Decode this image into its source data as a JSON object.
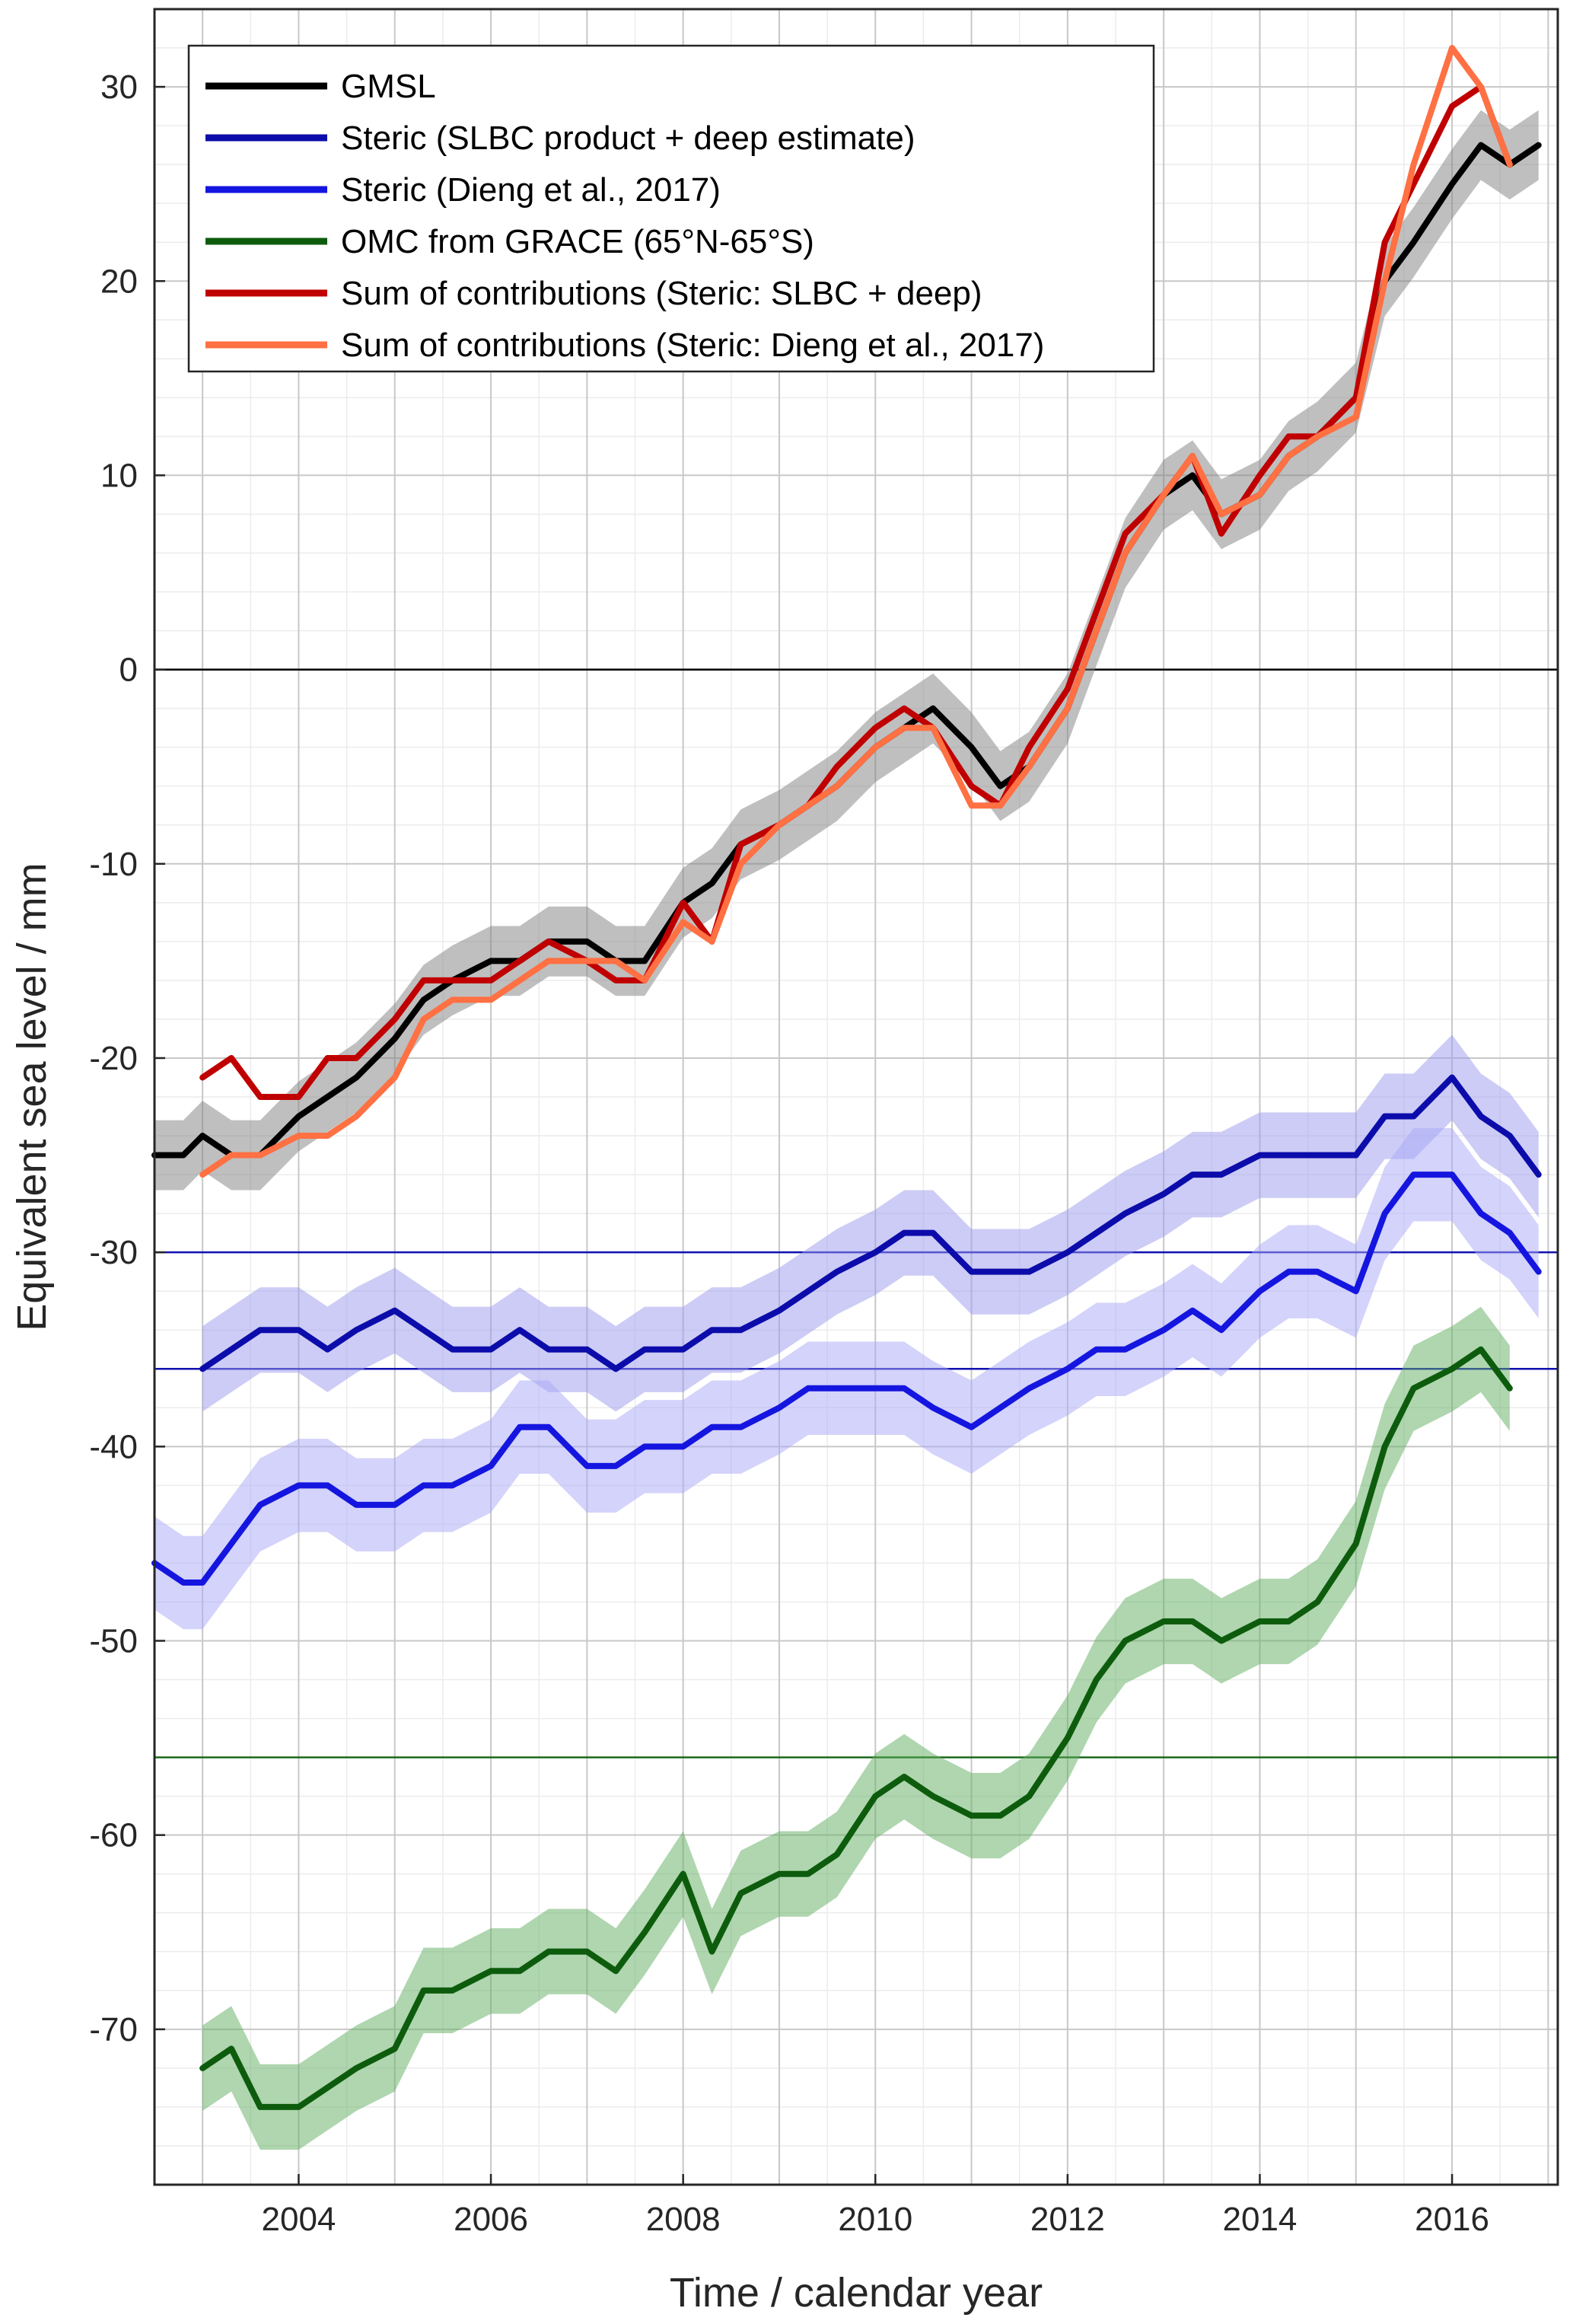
{
  "chart_data": {
    "type": "line",
    "title": "",
    "xlabel": "Time / calendar year",
    "ylabel": "Equivalent sea level / mm",
    "xlim": [
      2002.5,
      2017.1
    ],
    "ylim": [
      -78,
      34
    ],
    "xticks": [
      2004,
      2006,
      2008,
      2010,
      2012,
      2014,
      2016
    ],
    "yticks": [
      30,
      20,
      10,
      0,
      -10,
      -20,
      -30,
      -40,
      -50,
      -60,
      -70
    ],
    "grid": true,
    "legend_position": "top-left",
    "reference_lines": [
      {
        "y": 0,
        "color": "#000000"
      },
      {
        "y": -30,
        "color": "#1010b0"
      },
      {
        "y": -36,
        "color": "#1010b0"
      },
      {
        "y": -56,
        "color": "#1a6a1a"
      }
    ],
    "series": [
      {
        "name": "GMSL",
        "color": "#000000",
        "band_color": "#808080",
        "band": 1.8,
        "x": [
          2002.5,
          2002.8,
          2003.0,
          2003.3,
          2003.6,
          2004.0,
          2004.3,
          2004.6,
          2005.0,
          2005.3,
          2005.6,
          2006.0,
          2006.3,
          2006.6,
          2007.0,
          2007.3,
          2007.6,
          2008.0,
          2008.3,
          2008.6,
          2009.0,
          2009.3,
          2009.6,
          2010.0,
          2010.3,
          2010.6,
          2011.0,
          2011.3,
          2011.6,
          2012.0,
          2012.3,
          2012.6,
          2013.0,
          2013.3,
          2013.6,
          2014.0,
          2014.3,
          2014.6,
          2015.0,
          2015.3,
          2015.6,
          2016.0,
          2016.3,
          2016.6,
          2016.9
        ],
        "values": [
          -25,
          -25,
          -24,
          -25,
          -25,
          -23,
          -22,
          -21,
          -19,
          -17,
          -16,
          -15,
          -15,
          -14,
          -14,
          -15,
          -15,
          -12,
          -11,
          -9,
          -8,
          -7,
          -6,
          -4,
          -3,
          -2,
          -4,
          -6,
          -5,
          -2,
          2,
          6,
          9,
          10,
          8,
          9,
          11,
          12,
          14,
          20,
          22,
          25,
          27,
          26,
          27
        ]
      },
      {
        "name": "Steric (SLBC product + deep estimate)",
        "color": "#0c0cab",
        "band_color": "#9999ee",
        "band": 2.2,
        "x": [
          2003.0,
          2003.3,
          2003.6,
          2004.0,
          2004.3,
          2004.6,
          2005.0,
          2005.3,
          2005.6,
          2006.0,
          2006.3,
          2006.6,
          2007.0,
          2007.3,
          2007.6,
          2008.0,
          2008.3,
          2008.6,
          2009.0,
          2009.3,
          2009.6,
          2010.0,
          2010.3,
          2010.6,
          2011.0,
          2011.3,
          2011.6,
          2012.0,
          2012.3,
          2012.6,
          2013.0,
          2013.3,
          2013.6,
          2014.0,
          2014.3,
          2014.6,
          2015.0,
          2015.3,
          2015.6,
          2016.0,
          2016.3,
          2016.6,
          2016.9
        ],
        "values": [
          -36,
          -35,
          -34,
          -34,
          -35,
          -34,
          -33,
          -34,
          -35,
          -35,
          -34,
          -35,
          -35,
          -36,
          -35,
          -35,
          -34,
          -34,
          -33,
          -32,
          -31,
          -30,
          -29,
          -29,
          -31,
          -31,
          -31,
          -30,
          -29,
          -28,
          -27,
          -26,
          -26,
          -25,
          -25,
          -25,
          -25,
          -23,
          -23,
          -21,
          -23,
          -24,
          -26
        ]
      },
      {
        "name": "Steric (Dieng et al., 2017)",
        "color": "#1515e0",
        "band_color": "#a8a8f8",
        "band": 2.4,
        "x": [
          2002.5,
          2002.8,
          2003.0,
          2003.3,
          2003.6,
          2004.0,
          2004.3,
          2004.6,
          2005.0,
          2005.3,
          2005.6,
          2006.0,
          2006.3,
          2006.6,
          2007.0,
          2007.3,
          2007.6,
          2008.0,
          2008.3,
          2008.6,
          2009.0,
          2009.3,
          2009.6,
          2010.0,
          2010.3,
          2010.6,
          2011.0,
          2011.3,
          2011.6,
          2012.0,
          2012.3,
          2012.6,
          2013.0,
          2013.3,
          2013.6,
          2014.0,
          2014.3,
          2014.6,
          2015.0,
          2015.3,
          2015.6,
          2016.0,
          2016.3,
          2016.6,
          2016.9
        ],
        "values": [
          -46,
          -47,
          -47,
          -45,
          -43,
          -42,
          -42,
          -43,
          -43,
          -42,
          -42,
          -41,
          -39,
          -39,
          -41,
          -41,
          -40,
          -40,
          -39,
          -39,
          -38,
          -37,
          -37,
          -37,
          -37,
          -38,
          -39,
          -38,
          -37,
          -36,
          -35,
          -35,
          -34,
          -33,
          -34,
          -32,
          -31,
          -31,
          -32,
          -28,
          -26,
          -26,
          -28,
          -29,
          -31
        ]
      },
      {
        "name": "OMC from GRACE (65°N-65°S)",
        "color": "#0d5c0d",
        "band_color": "#5fae5f",
        "band": 2.2,
        "x": [
          2003.0,
          2003.3,
          2003.6,
          2004.0,
          2004.3,
          2004.6,
          2005.0,
          2005.3,
          2005.6,
          2006.0,
          2006.3,
          2006.6,
          2007.0,
          2007.3,
          2007.6,
          2008.0,
          2008.3,
          2008.6,
          2009.0,
          2009.3,
          2009.6,
          2010.0,
          2010.3,
          2010.6,
          2011.0,
          2011.3,
          2011.6,
          2012.0,
          2012.3,
          2012.6,
          2013.0,
          2013.3,
          2013.6,
          2014.0,
          2014.3,
          2014.6,
          2015.0,
          2015.3,
          2015.6,
          2016.0,
          2016.3,
          2016.6
        ],
        "values": [
          -72,
          -71,
          -74,
          -74,
          -73,
          -72,
          -71,
          -68,
          -68,
          -67,
          -67,
          -66,
          -66,
          -67,
          -65,
          -62,
          -66,
          -63,
          -62,
          -62,
          -61,
          -58,
          -57,
          -58,
          -59,
          -59,
          -58,
          -55,
          -52,
          -50,
          -49,
          -49,
          -50,
          -49,
          -49,
          -48,
          -45,
          -40,
          -37,
          -36,
          -35,
          -37
        ]
      },
      {
        "name": "Sum of contributions (Steric: SLBC + deep)",
        "color": "#c00000",
        "band_color": "",
        "band": 0,
        "x": [
          2003.0,
          2003.3,
          2003.6,
          2004.0,
          2004.3,
          2004.6,
          2005.0,
          2005.3,
          2005.6,
          2006.0,
          2006.3,
          2006.6,
          2007.0,
          2007.3,
          2007.6,
          2008.0,
          2008.3,
          2008.6,
          2009.0,
          2009.3,
          2009.6,
          2010.0,
          2010.3,
          2010.6,
          2011.0,
          2011.3,
          2011.6,
          2012.0,
          2012.3,
          2012.6,
          2013.0,
          2013.3,
          2013.6,
          2014.0,
          2014.3,
          2014.6,
          2015.0,
          2015.3,
          2015.6,
          2016.0,
          2016.3,
          2016.6
        ],
        "values": [
          -21,
          -20,
          -22,
          -22,
          -20,
          -20,
          -18,
          -16,
          -16,
          -16,
          -15,
          -14,
          -15,
          -16,
          -16,
          -12,
          -14,
          -9,
          -8,
          -7,
          -5,
          -3,
          -2,
          -3,
          -6,
          -7,
          -4,
          -1,
          3,
          7,
          9,
          11,
          7,
          10,
          12,
          12,
          14,
          22,
          25,
          29,
          30,
          26
        ]
      },
      {
        "name": "Sum of contributions (Steric: Dieng et al., 2017)",
        "color": "#ff7043",
        "band_color": "",
        "band": 0,
        "x": [
          2003.0,
          2003.3,
          2003.6,
          2004.0,
          2004.3,
          2004.6,
          2005.0,
          2005.3,
          2005.6,
          2006.0,
          2006.3,
          2006.6,
          2007.0,
          2007.3,
          2007.6,
          2008.0,
          2008.3,
          2008.6,
          2009.0,
          2009.3,
          2009.6,
          2010.0,
          2010.3,
          2010.6,
          2011.0,
          2011.3,
          2011.6,
          2012.0,
          2012.3,
          2012.6,
          2013.0,
          2013.3,
          2013.6,
          2014.0,
          2014.3,
          2014.6,
          2015.0,
          2015.3,
          2015.6,
          2016.0,
          2016.3,
          2016.6
        ],
        "values": [
          -26,
          -25,
          -25,
          -24,
          -24,
          -23,
          -21,
          -18,
          -17,
          -17,
          -16,
          -15,
          -15,
          -15,
          -16,
          -13,
          -14,
          -10,
          -8,
          -7,
          -6,
          -4,
          -3,
          -3,
          -7,
          -7,
          -5,
          -2,
          2,
          6,
          9,
          11,
          8,
          9,
          11,
          12,
          13,
          20,
          26,
          32,
          30,
          26
        ]
      }
    ]
  }
}
